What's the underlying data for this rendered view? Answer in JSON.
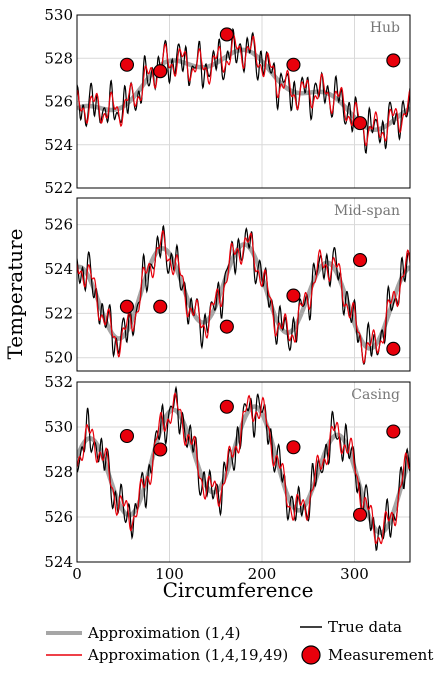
{
  "chart_data": [
    {
      "type": "line",
      "title": "Hub",
      "ylim": [
        522,
        530
      ],
      "yticks": [
        522,
        524,
        526,
        528,
        530
      ],
      "xlim": [
        0,
        360
      ],
      "measurements": [
        [
          54,
          527.7
        ],
        [
          90,
          527.4
        ],
        [
          162,
          529.1
        ],
        [
          234,
          527.7
        ],
        [
          306,
          525.0
        ],
        [
          342,
          527.9
        ]
      ],
      "params": {
        "mean": 526.6,
        "a1": 1.5,
        "p1": 2.7,
        "a4": 0.45,
        "p4": 0.3
      }
    },
    {
      "type": "line",
      "title": "Mid-span",
      "ylim": [
        519.4,
        527.2
      ],
      "yticks": [
        520,
        522,
        524,
        526
      ],
      "xlim": [
        0,
        360
      ],
      "measurements": [
        [
          54,
          522.3
        ],
        [
          90,
          522.3
        ],
        [
          162,
          521.4
        ],
        [
          234,
          522.8
        ],
        [
          306,
          524.4
        ],
        [
          342,
          520.4
        ]
      ],
      "params": {
        "mean": 522.8,
        "a1": 0.6,
        "p1": 2.6,
        "a4": 1.8,
        "p4": 0.1
      }
    },
    {
      "type": "line",
      "title": "Casing",
      "ylim": [
        524,
        532
      ],
      "yticks": [
        524,
        526,
        528,
        530,
        532
      ],
      "xlim": [
        0,
        360
      ],
      "measurements": [
        [
          54,
          529.6
        ],
        [
          90,
          529.0
        ],
        [
          162,
          530.9
        ],
        [
          234,
          529.1
        ],
        [
          306,
          526.1
        ],
        [
          342,
          529.8
        ]
      ],
      "params": {
        "mean": 528.2,
        "a1": 0.9,
        "p1": 2.7,
        "a4": 2.0,
        "p4": 0.9
      }
    }
  ],
  "axes": {
    "xticks": [
      0,
      100,
      200,
      300
    ],
    "xlabel": "Circumference",
    "ylabel": "Temperature"
  },
  "legend": {
    "approx14": "Approximation (1,4)",
    "approx_full": "Approximation (1,4,19,49)",
    "true_data": "True data",
    "measurement": "Measurement"
  },
  "colors": {
    "approx14": "#a6a6a6",
    "approx_full": "#e8000b",
    "true_data": "#000000",
    "measurement": "#e8000b",
    "grid": "#d9d9d9"
  }
}
